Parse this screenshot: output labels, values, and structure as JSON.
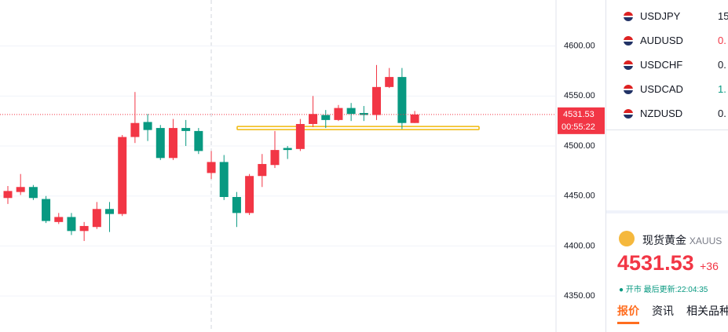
{
  "chart_data": {
    "type": "candlestick",
    "open": [
      4448,
      4454,
      4459,
      4447,
      4424,
      4429,
      4415,
      4419,
      4437,
      4432,
      4509,
      4524,
      4518,
      4488,
      4518,
      4515,
      4473,
      4484,
      4449,
      4433,
      4470,
      4481,
      4498,
      4497,
      4522,
      4531,
      4526,
      4538,
      4533,
      4531,
      4559,
      4569,
      4523
    ],
    "high": [
      4460,
      4472,
      4461,
      4450,
      4433,
      4433,
      4424,
      4444,
      4444,
      4511,
      4554,
      4532,
      4521,
      4527,
      4526,
      4518,
      4495,
      4491,
      4454,
      4472,
      4492,
      4515,
      4500,
      4527,
      4550,
      4536,
      4541,
      4543,
      4540,
      4581,
      4578,
      4578,
      4535
    ],
    "low": [
      4442,
      4451,
      4446,
      4423,
      4422,
      4411,
      4405,
      4417,
      4414,
      4430,
      4503,
      4505,
      4486,
      4486,
      4500,
      4492,
      4467,
      4446,
      4419,
      4431,
      4459,
      4478,
      4487,
      4495,
      4519,
      4518,
      4525,
      4525,
      4525,
      4526,
      4558,
      4517,
      4523
    ],
    "close": [
      4455,
      4459,
      4448,
      4425,
      4429,
      4415,
      4420,
      4437,
      4432,
      4509,
      4523,
      4516,
      4488,
      4518,
      4515,
      4495,
      4484,
      4449,
      4433,
      4470,
      4482,
      4496,
      4496,
      4522,
      4532,
      4526,
      4538,
      4532,
      4531,
      4559,
      4569,
      4523,
      4531.53
    ],
    "up_color": "#f23645",
    "down_color": "#089981",
    "ylim": [
      4314,
      4646
    ],
    "yticks": [
      {
        "value": 4350,
        "label": "4350.00"
      },
      {
        "value": 4400,
        "label": "4400.00"
      },
      {
        "value": 4450,
        "label": "4450.00"
      },
      {
        "value": 4500,
        "label": "4500.00"
      },
      {
        "value": 4550,
        "label": "4550.00"
      },
      {
        "value": 4600,
        "label": "4600.00"
      }
    ],
    "grid": true,
    "last_price": 4531.53,
    "countdown": "00:55:22",
    "hline": {
      "value": 4518,
      "color": "#f0b90b"
    }
  },
  "watchlist": [
    {
      "symbol": "USDJPY",
      "price": "15",
      "color": "#131722"
    },
    {
      "symbol": "AUDUSD",
      "price": "0.",
      "color": "#f23645"
    },
    {
      "symbol": "USDCHF",
      "price": "0.",
      "color": "#131722"
    },
    {
      "symbol": "USDCAD",
      "price": "1.",
      "color": "#089981"
    },
    {
      "symbol": "NZDUSD",
      "price": "0.",
      "color": "#131722"
    }
  ],
  "quote": {
    "name": "现货黄金",
    "code": "XAUUS",
    "price": "4531.53",
    "change": "+36",
    "status": "开市",
    "updated": "最后更新:22:04:35",
    "tabs": [
      "报价",
      "资讯",
      "相关品种"
    ]
  }
}
